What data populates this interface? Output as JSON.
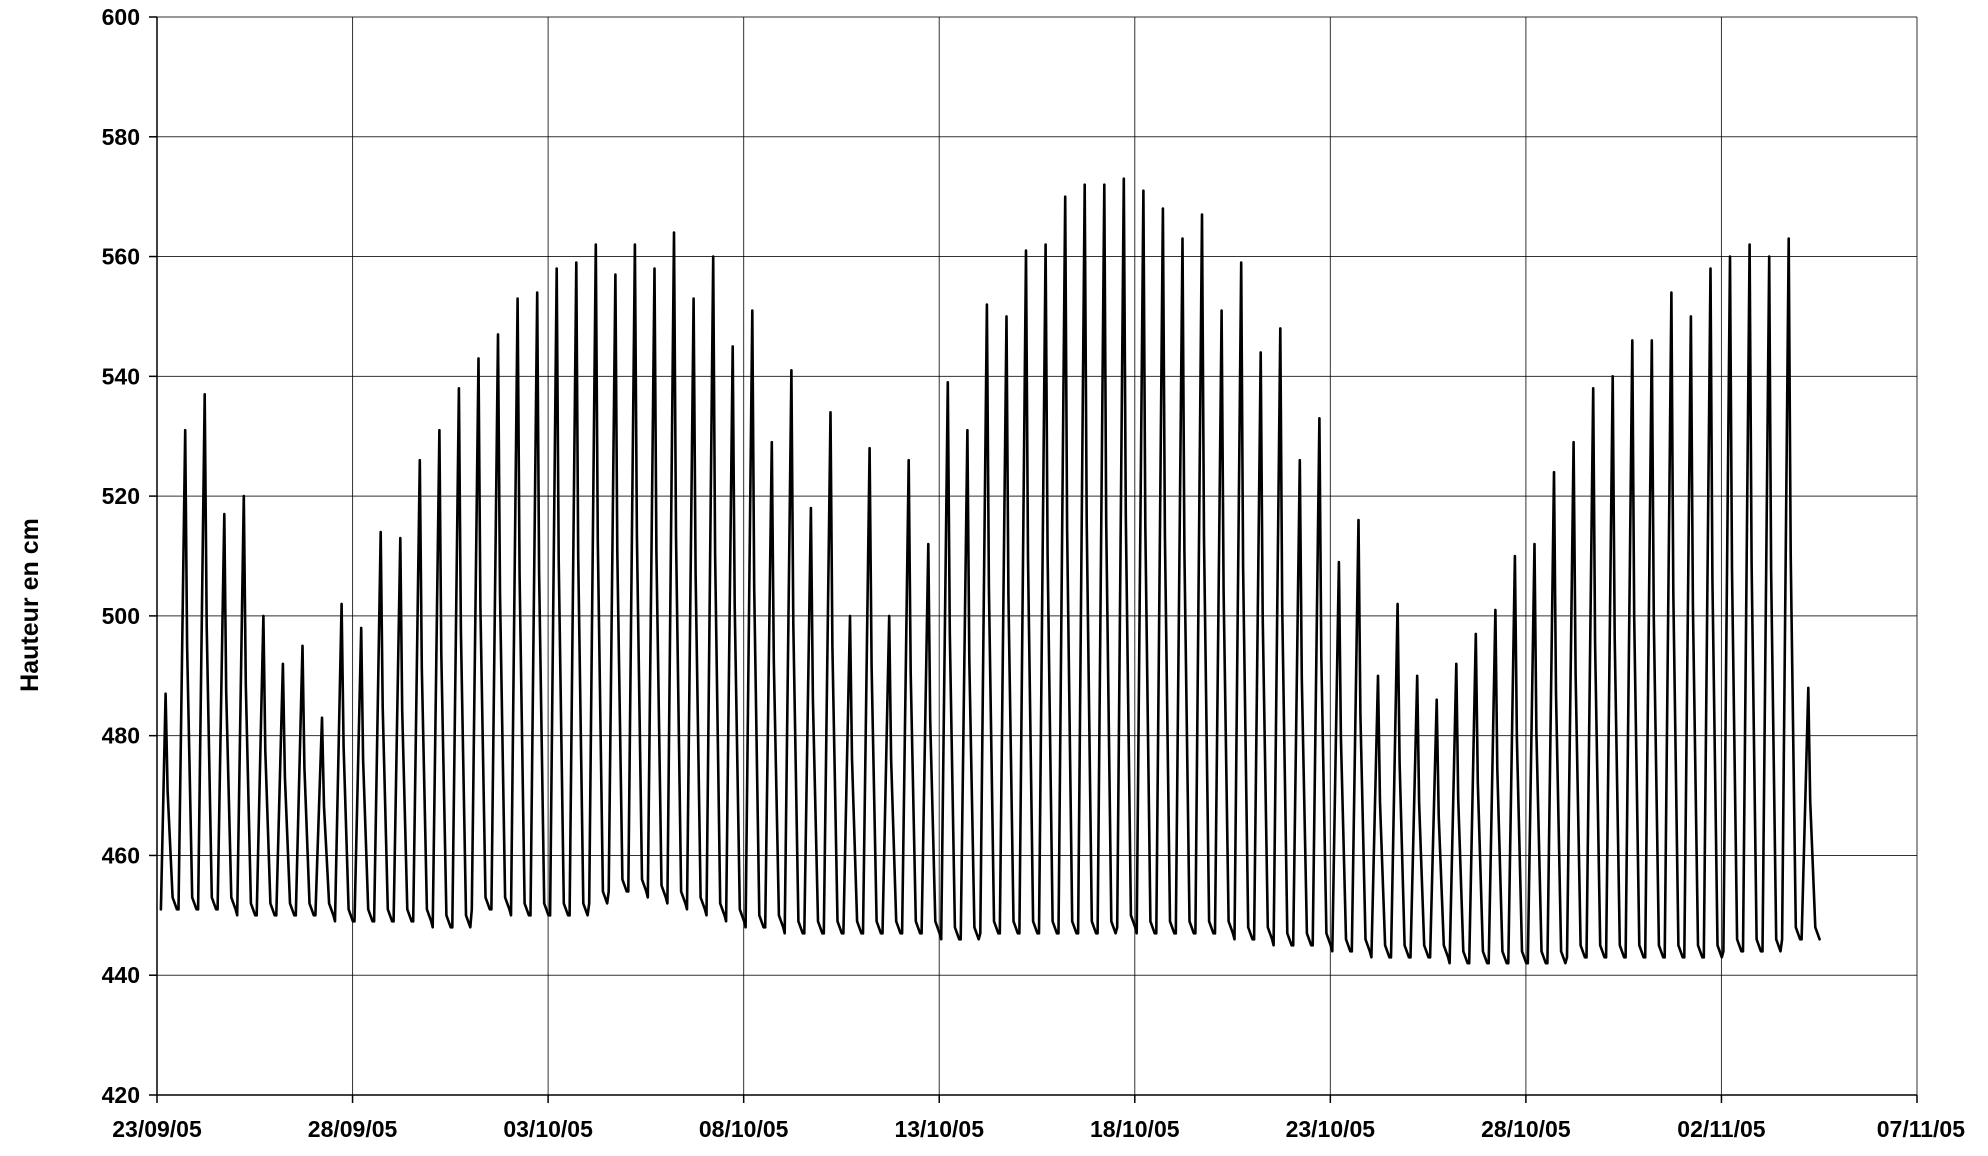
{
  "chart_data": {
    "type": "line",
    "title": "",
    "xlabel": "",
    "ylabel": "Hauteur en cm",
    "x_axis_type": "date",
    "x_tick_labels": [
      "23/09/05",
      "28/09/05",
      "03/10/05",
      "08/10/05",
      "13/10/05",
      "18/10/05",
      "23/10/05",
      "28/10/05",
      "02/11/05",
      "07/11/05"
    ],
    "xlim": [
      "23/09/05",
      "07/11/05"
    ],
    "y_ticks": [
      420,
      440,
      460,
      480,
      500,
      520,
      540,
      560,
      580,
      600
    ],
    "ylim": [
      420,
      600
    ],
    "grid": true,
    "legend": "none",
    "line_color": "#000000",
    "series": [
      {
        "description": "high water peaks, roughly two per day",
        "x": [
          "23/09/05",
          "23/09/05",
          "24/09/05",
          "24/09/05",
          "25/09/05",
          "25/09/05",
          "26/09/05",
          "26/09/05",
          "27/09/05",
          "27/09/05",
          "28/09/05",
          "28/09/05",
          "29/09/05",
          "29/09/05",
          "30/09/05",
          "30/09/05",
          "01/10/05",
          "01/10/05",
          "02/10/05",
          "02/10/05",
          "03/10/05",
          "03/10/05",
          "04/10/05",
          "04/10/05",
          "05/10/05",
          "05/10/05",
          "06/10/05",
          "06/10/05",
          "07/10/05",
          "07/10/05",
          "08/10/05",
          "08/10/05",
          "09/10/05",
          "09/10/05",
          "10/10/05",
          "10/10/05",
          "11/10/05",
          "11/10/05",
          "12/10/05",
          "12/10/05",
          "13/10/05",
          "13/10/05",
          "14/10/05",
          "14/10/05",
          "15/10/05",
          "15/10/05",
          "16/10/05",
          "16/10/05",
          "17/10/05",
          "17/10/05",
          "18/10/05",
          "18/10/05",
          "19/10/05",
          "19/10/05",
          "20/10/05",
          "20/10/05",
          "21/10/05",
          "21/10/05",
          "22/10/05",
          "22/10/05",
          "23/10/05",
          "23/10/05",
          "24/10/05",
          "24/10/05",
          "25/10/05",
          "25/10/05",
          "26/10/05",
          "26/10/05",
          "27/10/05",
          "27/10/05",
          "28/10/05",
          "28/10/05",
          "29/10/05",
          "29/10/05",
          "30/10/05",
          "30/10/05",
          "31/10/05",
          "31/10/05",
          "01/11/05",
          "01/11/05",
          "02/11/05",
          "02/11/05",
          "03/11/05",
          "03/11/05",
          "04/11/05"
        ],
        "peaks": [
          487,
          531,
          537,
          517,
          520,
          500,
          492,
          495,
          483,
          502,
          498,
          514,
          513,
          526,
          531,
          538,
          543,
          547,
          553,
          554,
          558,
          559,
          562,
          557,
          562,
          558,
          564,
          553,
          560,
          545,
          551,
          529,
          541,
          518,
          534,
          500,
          528,
          500,
          526,
          512,
          539,
          531,
          552,
          550,
          561,
          562,
          570,
          572,
          572,
          573,
          571,
          568,
          563,
          567,
          551,
          559,
          544,
          548,
          526,
          533,
          509,
          516,
          490,
          502,
          490,
          486,
          492,
          497,
          501,
          510,
          512,
          524,
          529,
          538,
          540,
          546,
          546,
          554,
          550,
          558,
          560,
          562,
          560,
          563,
          488
        ],
        "lows": [
          451,
          451,
          451,
          451,
          450,
          450,
          450,
          450,
          450,
          449,
          449,
          449,
          449,
          449,
          448,
          448,
          451,
          451,
          450,
          450,
          450,
          450,
          452,
          454,
          454,
          453,
          452,
          451,
          450,
          449,
          448,
          448,
          447,
          447,
          447,
          447,
          447,
          447,
          447,
          447,
          446,
          446,
          447,
          447,
          447,
          447,
          447,
          447,
          447,
          448,
          447,
          447,
          447,
          447,
          447,
          446,
          446,
          445,
          445,
          445,
          444,
          444,
          443,
          443,
          443,
          443,
          442,
          442,
          442,
          442,
          442,
          442,
          443,
          443,
          443,
          443,
          443,
          443,
          443,
          443,
          444,
          444,
          444,
          446,
          446
        ]
      }
    ]
  }
}
